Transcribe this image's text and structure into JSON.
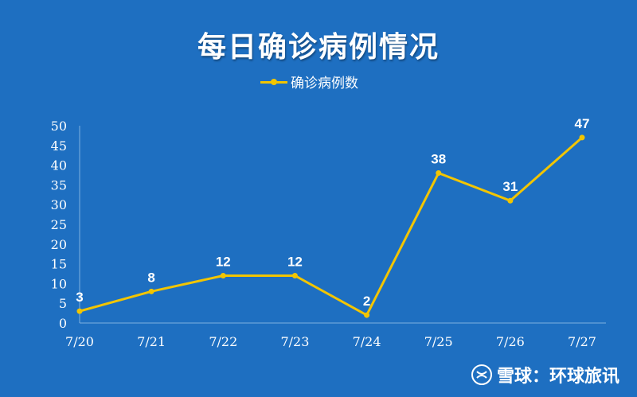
{
  "chart_data": {
    "type": "line",
    "title": "每日确诊病例情况",
    "categories": [
      "7/20",
      "7/21",
      "7/22",
      "7/23",
      "7/24",
      "7/25",
      "7/26",
      "7/27"
    ],
    "series": [
      {
        "name": "确诊病例数",
        "values": [
          3,
          8,
          12,
          12,
          2,
          38,
          31,
          47
        ],
        "color": "#f2c500"
      }
    ],
    "ylim": [
      0,
      50
    ],
    "yticks": [
      0,
      5,
      10,
      15,
      20,
      25,
      30,
      35,
      40,
      45,
      50
    ],
    "grid": false,
    "legend_position": "top-center",
    "data_labels": true
  },
  "watermark": {
    "text": "雪球：环球旅讯",
    "icon": "snowball-logo-icon"
  },
  "colors": {
    "background": "#1e6fc1",
    "series": "#f2c500",
    "text": "#ffffff"
  }
}
